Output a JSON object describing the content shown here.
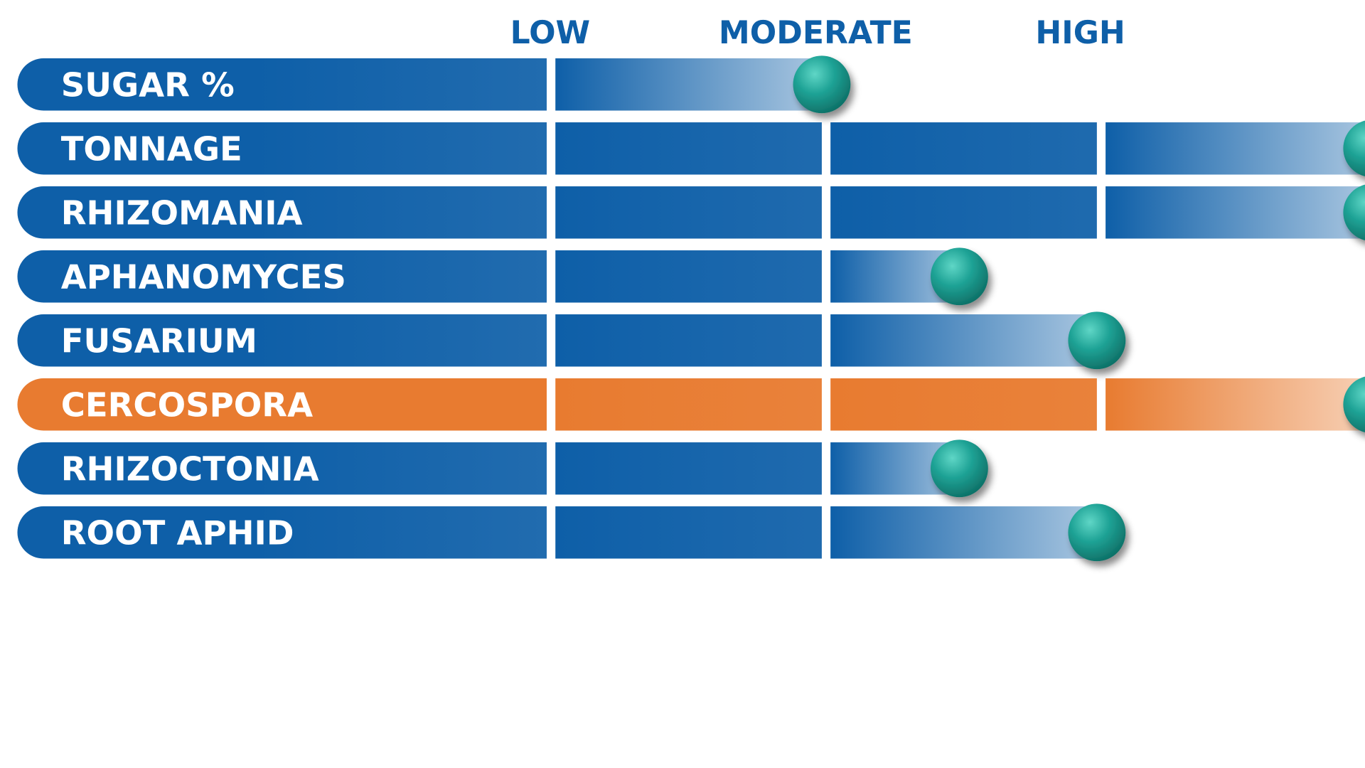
{
  "chart_data": {
    "type": "bar",
    "scale_labels": [
      "LOW",
      "MODERATE",
      "HIGH"
    ],
    "x_range": [
      0,
      3
    ],
    "colors": {
      "primary": "#0E5FA8",
      "highlight": "#E87B30",
      "marker": "#1FA396",
      "scale_text": "#0E5FA8",
      "label_text": "#FFFFFF"
    },
    "categories": [
      "SUGAR %",
      "TONNAGE",
      "RHIZOMANIA",
      "APHANOMYCES",
      "FUSARIUM",
      "CERCOSPORA",
      "RHIZOCTONIA",
      "ROOT APHID"
    ],
    "values": [
      1.0,
      3.0,
      3.0,
      1.5,
      2.0,
      3.0,
      1.5,
      2.0
    ],
    "highlighted": [
      "CERCOSPORA"
    ],
    "legend": false,
    "grid": false
  }
}
